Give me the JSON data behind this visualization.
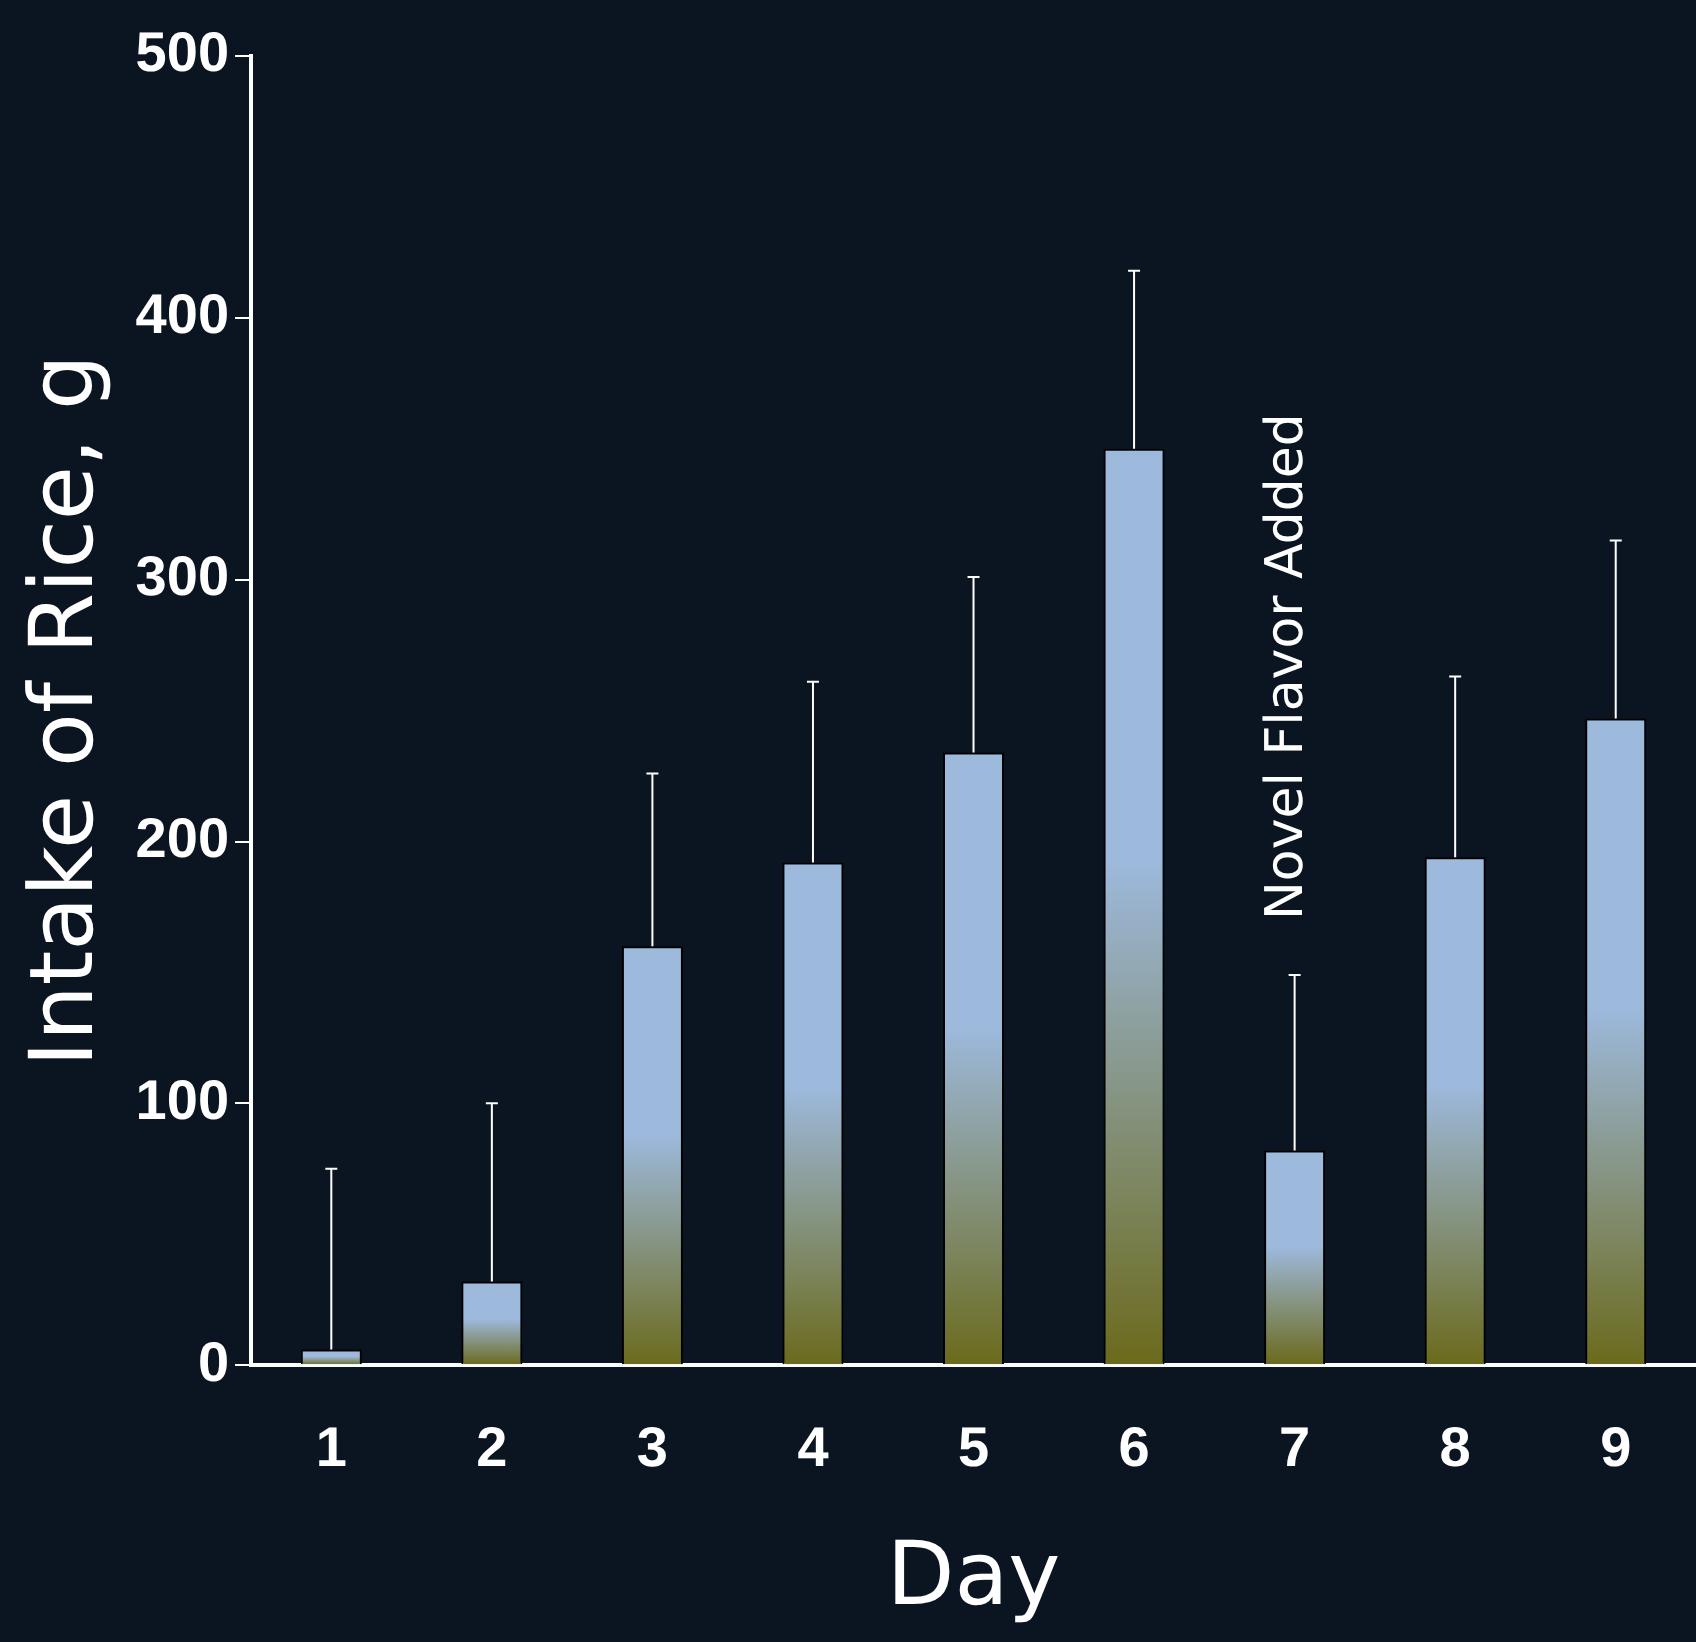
{
  "chart_data": {
    "type": "bar",
    "xlabel": "Day",
    "ylabel": "Intake of Rice, g",
    "categories": [
      "1",
      "2",
      "3",
      "4",
      "5",
      "6",
      "7",
      "8",
      "9"
    ],
    "values": [
      6,
      32,
      160,
      192,
      234,
      350,
      82,
      194,
      247
    ],
    "errors": [
      [
        6,
        75
      ],
      [
        32,
        100
      ],
      [
        160,
        226
      ],
      [
        192,
        261
      ],
      [
        234,
        301
      ],
      [
        350,
        418
      ],
      [
        82,
        149
      ],
      [
        194,
        263
      ],
      [
        247,
        315
      ]
    ],
    "color": "#9db9dc",
    "ylim": [
      0,
      500
    ],
    "yticks": [
      0,
      100,
      200,
      300,
      400,
      500
    ],
    "grid": false,
    "legend": false,
    "annotations": [
      "Novel Flavor Added"
    ]
  }
}
